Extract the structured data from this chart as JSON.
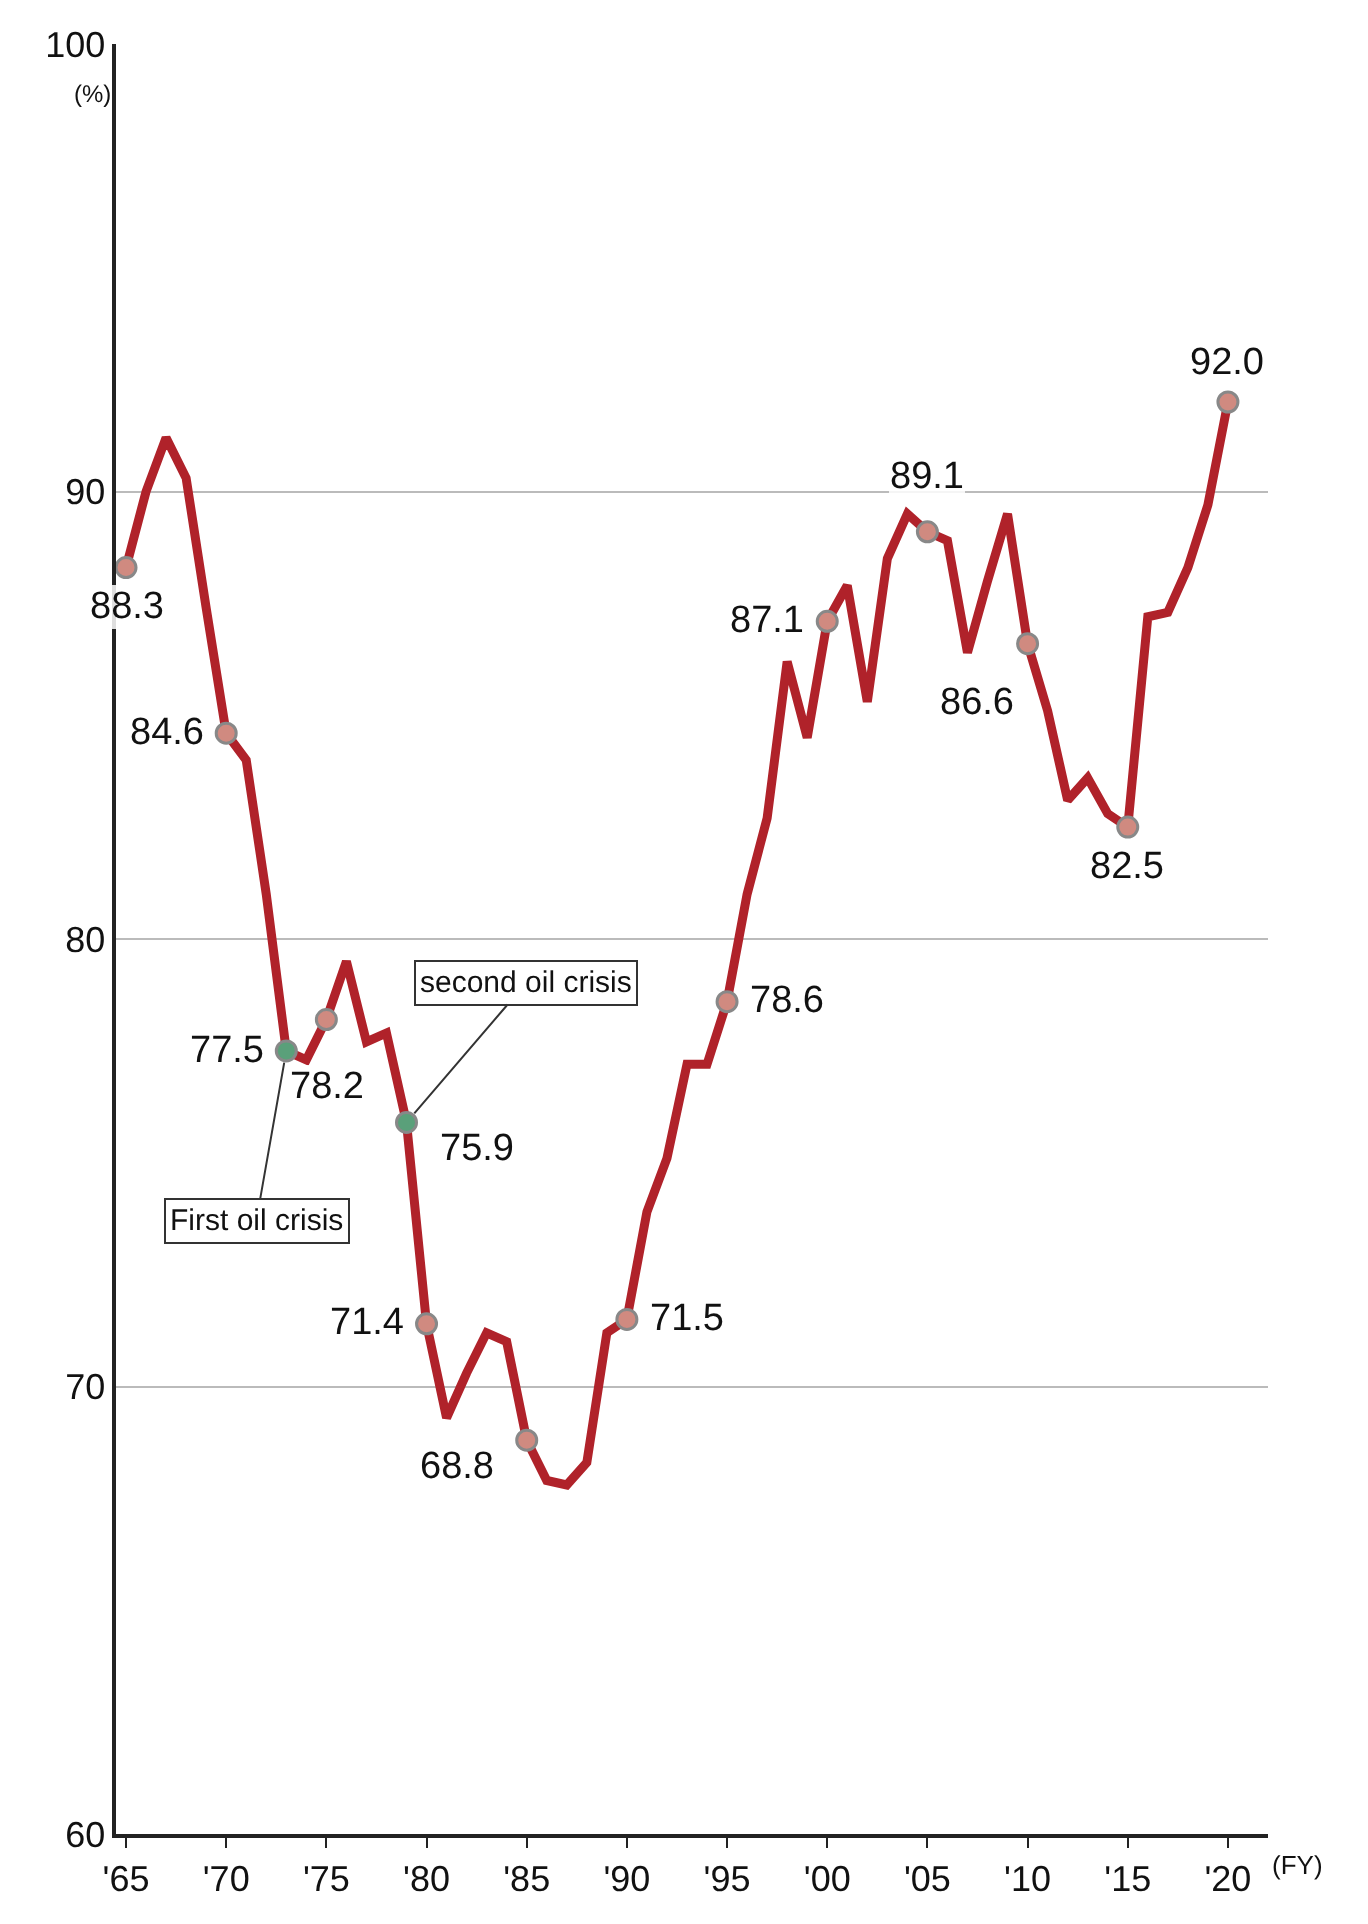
{
  "chart_data": {
    "type": "line",
    "ylabel": "(%)",
    "xlabel": "(FY)",
    "xlim": [
      1964.5,
      2022
    ],
    "ylim": [
      60,
      100
    ],
    "xticks": [
      {
        "value": 1965,
        "label": "'65"
      },
      {
        "value": 1970,
        "label": "'70"
      },
      {
        "value": 1975,
        "label": "'75"
      },
      {
        "value": 1980,
        "label": "'80"
      },
      {
        "value": 1985,
        "label": "'85"
      },
      {
        "value": 1990,
        "label": "'90"
      },
      {
        "value": 1995,
        "label": "'95"
      },
      {
        "value": 2000,
        "label": "'00"
      },
      {
        "value": 2005,
        "label": "'05"
      },
      {
        "value": 2010,
        "label": "'10"
      },
      {
        "value": 2015,
        "label": "'15"
      },
      {
        "value": 2020,
        "label": "'20"
      }
    ],
    "yticks": [
      60,
      70,
      80,
      90,
      100
    ],
    "grid": "y",
    "series": [
      {
        "color": "#b0222a",
        "marker": "none",
        "x": [
          1965,
          1966,
          1967,
          1968,
          1969,
          1970,
          1971,
          1972,
          1973,
          1974,
          1975,
          1976,
          1977,
          1978,
          1979,
          1980,
          1981,
          1982,
          1983,
          1984,
          1985,
          1986,
          1987,
          1988,
          1989,
          1990,
          1991,
          1992,
          1993,
          1994,
          1995,
          1996,
          1997,
          1998,
          1999,
          2000,
          2001,
          2002,
          2003,
          2004,
          2005,
          2006,
          2007,
          2008,
          2009,
          2010,
          2011,
          2012,
          2013,
          2014,
          2015,
          2016,
          2017,
          2018,
          2019,
          2020
        ],
        "values": [
          88.3,
          90.0,
          91.2,
          90.3,
          87.4,
          84.6,
          84.0,
          81.0,
          77.5,
          77.3,
          78.2,
          79.5,
          77.7,
          77.9,
          75.9,
          71.4,
          69.3,
          70.3,
          71.2,
          71.0,
          68.8,
          67.9,
          67.8,
          68.3,
          71.2,
          71.5,
          73.9,
          75.1,
          77.2,
          77.2,
          78.6,
          81.0,
          82.7,
          86.2,
          84.5,
          87.1,
          87.9,
          85.3,
          88.5,
          89.5,
          89.1,
          88.9,
          86.4,
          88.0,
          89.5,
          86.6,
          85.1,
          83.1,
          83.6,
          82.8,
          82.5,
          87.2,
          87.3,
          88.3,
          89.7,
          92.0
        ]
      },
      {
        "type": "scatter",
        "marker": "circle",
        "x": [
          1965,
          1970,
          1973,
          1975,
          1979,
          1980,
          1985,
          1990,
          1995,
          2000,
          2005,
          2010,
          2015,
          2020
        ],
        "values": [
          88.3,
          84.6,
          77.5,
          78.2,
          75.9,
          71.4,
          68.8,
          71.5,
          78.6,
          87.1,
          89.1,
          86.6,
          82.5,
          92.0
        ],
        "colors": [
          "#d08a80",
          "#d08a80",
          "#5aa07a",
          "#d08a80",
          "#5aa07a",
          "#d08a80",
          "#d08a80",
          "#d08a80",
          "#d08a80",
          "#d08a80",
          "#d08a80",
          "#d08a80",
          "#d08a80",
          "#d08a80"
        ],
        "value_labels": [
          "88.3",
          "84.6",
          "77.5",
          "78.2",
          "75.9",
          "71.4",
          "68.8",
          "71.5",
          "78.6",
          "87.1",
          "89.1",
          "86.6",
          "82.5",
          "92.0"
        ]
      }
    ],
    "annotations": [
      {
        "text": "First oil crisis",
        "x": 1973,
        "y": 77.5
      },
      {
        "text": "second oil crisis",
        "x": 1979,
        "y": 75.9
      }
    ]
  }
}
